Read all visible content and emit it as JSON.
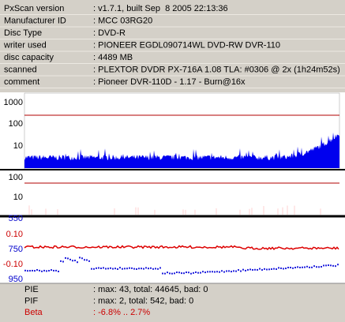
{
  "info": [
    {
      "label": "PxScan version",
      "value": ": v1.7.1, built Sep  8 2005 22:13:36"
    },
    {
      "label": "Manufacturer ID",
      "value": ": MCC 03RG20"
    },
    {
      "label": "Disc Type",
      "value": ": DVD-R"
    },
    {
      "label": "writer used",
      "value": ": PIONEER EGDL090714WL DVD-RW DVR-110"
    },
    {
      "label": "disc capacity",
      "value": ": 4489 MB"
    },
    {
      "label": "scanned",
      "value": ": PLEXTOR DVDR PX-716A 1.08 TLA: #0306 @ 2x (1h24m52s)"
    },
    {
      "label": "comment",
      "value": ": Pioneer DVR-110D - 1.17 - Burn@16x"
    }
  ],
  "panels": [
    {
      "ticks": [
        {
          "label": "1000",
          "color": "#000000"
        },
        {
          "label": "100",
          "color": "#000000"
        },
        {
          "label": "10",
          "color": "#000000"
        }
      ]
    },
    {
      "ticks": [
        {
          "label": "100",
          "color": "#000000"
        },
        {
          "label": "10",
          "color": "#000000"
        }
      ]
    },
    {
      "ticks": [
        {
          "label": "550",
          "color": "#0000cc"
        },
        {
          "label": "0.10",
          "color": "#cc0000"
        },
        {
          "label": "750",
          "color": "#0000cc"
        },
        {
          "label": "-0.10",
          "color": "#cc0000"
        },
        {
          "label": "950",
          "color": "#0000cc"
        }
      ]
    }
  ],
  "stats": [
    {
      "label": "PIE",
      "value": ": max: 43, total: 44645, bad: 0",
      "color": "#000000"
    },
    {
      "label": "PIF",
      "value": ": max: 2, total: 542, bad: 0",
      "color": "#000000"
    },
    {
      "label": "Beta",
      "value": ": -6.8% .. 2.7%",
      "color": "#cc0000"
    }
  ]
}
